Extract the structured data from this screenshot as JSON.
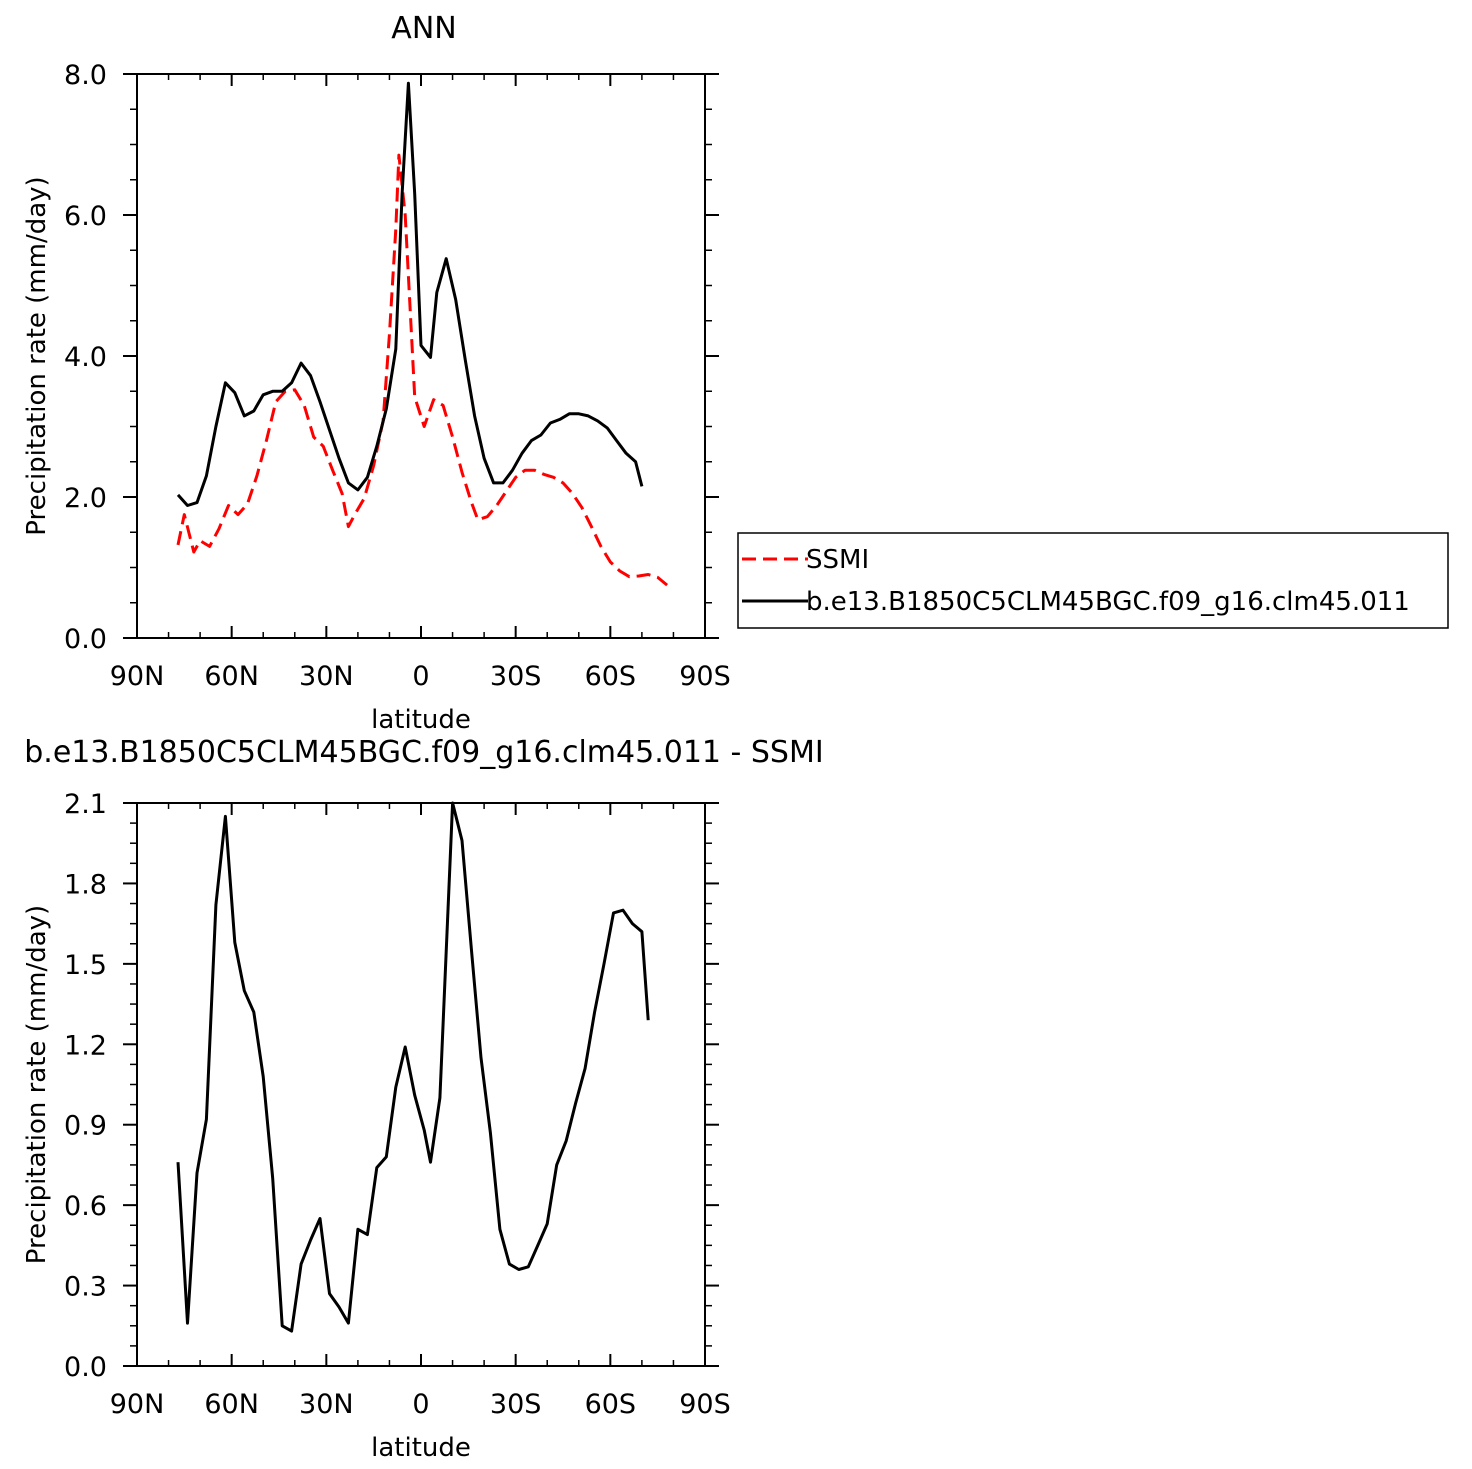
{
  "chart_data": [
    {
      "type": "line",
      "title": "ANN",
      "xlabel": "latitude",
      "ylabel": "Precipitation rate (mm/day)",
      "xlim": [
        -90,
        90
      ],
      "ylim": [
        0,
        8
      ],
      "x_ticks": [
        -90,
        -60,
        -30,
        0,
        30,
        60,
        90
      ],
      "x_tick_labels": [
        "90N",
        "60N",
        "30N",
        "0",
        "30S",
        "60S",
        "90S"
      ],
      "y_ticks": [
        0,
        2,
        4,
        6,
        8
      ],
      "y_tick_labels": [
        "0.0",
        "2.0",
        "4.0",
        "6.0",
        "8.0"
      ],
      "legend": {
        "placement": "right"
      },
      "series": [
        {
          "name": "SSMI",
          "color": "#ff0000",
          "dash": "dashed",
          "points": [
            [
              -77,
              1.32
            ],
            [
              -75,
              1.75
            ],
            [
              -72,
              1.22
            ],
            [
              -70,
              1.38
            ],
            [
              -67,
              1.3
            ],
            [
              -64,
              1.55
            ],
            [
              -61,
              1.88
            ],
            [
              -58,
              1.75
            ],
            [
              -55,
              1.9
            ],
            [
              -52,
              2.3
            ],
            [
              -49,
              2.8
            ],
            [
              -46,
              3.35
            ],
            [
              -43,
              3.5
            ],
            [
              -40,
              3.52
            ],
            [
              -37,
              3.3
            ],
            [
              -34,
              2.85
            ],
            [
              -31,
              2.72
            ],
            [
              -28,
              2.38
            ],
            [
              -25,
              2.05
            ],
            [
              -23,
              1.58
            ],
            [
              -21,
              1.75
            ],
            [
              -18,
              1.98
            ],
            [
              -15,
              2.45
            ],
            [
              -12,
              3.08
            ],
            [
              -10,
              4.3
            ],
            [
              -8,
              5.8
            ],
            [
              -7,
              6.85
            ],
            [
              -5,
              6.0
            ],
            [
              -3,
              4.3
            ],
            [
              -2,
              3.42
            ],
            [
              1,
              3.0
            ],
            [
              4,
              3.38
            ],
            [
              7,
              3.3
            ],
            [
              10,
              2.85
            ],
            [
              13,
              2.35
            ],
            [
              16,
              1.92
            ],
            [
              18,
              1.68
            ],
            [
              21,
              1.72
            ],
            [
              24,
              1.88
            ],
            [
              27,
              2.08
            ],
            [
              30,
              2.28
            ],
            [
              33,
              2.38
            ],
            [
              36,
              2.38
            ],
            [
              39,
              2.32
            ],
            [
              42,
              2.28
            ],
            [
              45,
              2.2
            ],
            [
              48,
              2.05
            ],
            [
              51,
              1.85
            ],
            [
              54,
              1.58
            ],
            [
              57,
              1.3
            ],
            [
              60,
              1.08
            ],
            [
              63,
              0.95
            ],
            [
              66,
              0.87
            ],
            [
              69,
              0.88
            ],
            [
              72,
              0.9
            ],
            [
              75,
              0.86
            ],
            [
              78,
              0.75
            ]
          ]
        },
        {
          "name": "b.e13.B1850C5CLM45BGC.f09_g16.clm45.011",
          "color": "#000000",
          "dash": "solid",
          "points": [
            [
              -77,
              2.03
            ],
            [
              -74,
              1.88
            ],
            [
              -71,
              1.92
            ],
            [
              -68,
              2.3
            ],
            [
              -65,
              3.0
            ],
            [
              -62,
              3.62
            ],
            [
              -59,
              3.48
            ],
            [
              -56,
              3.15
            ],
            [
              -53,
              3.22
            ],
            [
              -50,
              3.45
            ],
            [
              -47,
              3.5
            ],
            [
              -44,
              3.5
            ],
            [
              -41,
              3.62
            ],
            [
              -38,
              3.9
            ],
            [
              -35,
              3.72
            ],
            [
              -32,
              3.35
            ],
            [
              -29,
              2.95
            ],
            [
              -26,
              2.55
            ],
            [
              -23,
              2.2
            ],
            [
              -20,
              2.1
            ],
            [
              -17,
              2.28
            ],
            [
              -14,
              2.72
            ],
            [
              -11,
              3.25
            ],
            [
              -8,
              4.1
            ],
            [
              -6,
              6.3
            ],
            [
              -4,
              7.87
            ],
            [
              -2,
              6.3
            ],
            [
              0,
              4.15
            ],
            [
              3,
              3.98
            ],
            [
              5,
              4.9
            ],
            [
              8,
              5.38
            ],
            [
              11,
              4.8
            ],
            [
              14,
              3.95
            ],
            [
              17,
              3.15
            ],
            [
              20,
              2.55
            ],
            [
              23,
              2.2
            ],
            [
              26,
              2.2
            ],
            [
              29,
              2.38
            ],
            [
              32,
              2.62
            ],
            [
              35,
              2.8
            ],
            [
              38,
              2.88
            ],
            [
              41,
              3.05
            ],
            [
              44,
              3.1
            ],
            [
              47,
              3.18
            ],
            [
              50,
              3.18
            ],
            [
              53,
              3.15
            ],
            [
              56,
              3.08
            ],
            [
              59,
              2.98
            ],
            [
              62,
              2.8
            ],
            [
              65,
              2.62
            ],
            [
              68,
              2.5
            ],
            [
              70,
              2.15
            ]
          ]
        }
      ]
    },
    {
      "type": "line",
      "title": "b.e13.B1850C5CLM45BGC.f09_g16.clm45.011 - SSMI",
      "xlabel": "latitude",
      "ylabel": "Precipitation rate (mm/day)",
      "xlim": [
        -90,
        90
      ],
      "ylim": [
        0,
        2.1
      ],
      "x_ticks": [
        -90,
        -60,
        -30,
        0,
        30,
        60,
        90
      ],
      "x_tick_labels": [
        "90N",
        "60N",
        "30N",
        "0",
        "30S",
        "60S",
        "90S"
      ],
      "y_ticks": [
        0,
        0.3,
        0.6,
        0.9,
        1.2,
        1.5,
        1.8,
        2.1
      ],
      "y_tick_labels": [
        "0.0",
        "0.3",
        "0.6",
        "0.9",
        "1.2",
        "1.5",
        "1.8",
        "2.1"
      ],
      "series": [
        {
          "color": "#000000",
          "dash": "solid",
          "points": [
            [
              -77,
              0.76
            ],
            [
              -74,
              0.16
            ],
            [
              -71,
              0.72
            ],
            [
              -68,
              0.92
            ],
            [
              -65,
              1.72
            ],
            [
              -62,
              2.05
            ],
            [
              -59,
              1.58
            ],
            [
              -56,
              1.4
            ],
            [
              -53,
              1.32
            ],
            [
              -50,
              1.08
            ],
            [
              -47,
              0.7
            ],
            [
              -44,
              0.15
            ],
            [
              -41,
              0.13
            ],
            [
              -38,
              0.38
            ],
            [
              -35,
              0.47
            ],
            [
              -32,
              0.55
            ],
            [
              -29,
              0.27
            ],
            [
              -26,
              0.22
            ],
            [
              -23,
              0.16
            ],
            [
              -20,
              0.51
            ],
            [
              -17,
              0.49
            ],
            [
              -14,
              0.74
            ],
            [
              -11,
              0.78
            ],
            [
              -8,
              1.04
            ],
            [
              -5,
              1.19
            ],
            [
              -2,
              1.01
            ],
            [
              1,
              0.88
            ],
            [
              3,
              0.76
            ],
            [
              6,
              1.0
            ],
            [
              10,
              2.1
            ],
            [
              13,
              1.96
            ],
            [
              16,
              1.55
            ],
            [
              19,
              1.15
            ],
            [
              22,
              0.87
            ],
            [
              25,
              0.51
            ],
            [
              28,
              0.38
            ],
            [
              31,
              0.36
            ],
            [
              34,
              0.37
            ],
            [
              37,
              0.45
            ],
            [
              40,
              0.53
            ],
            [
              43,
              0.75
            ],
            [
              46,
              0.84
            ],
            [
              49,
              0.98
            ],
            [
              52,
              1.11
            ],
            [
              55,
              1.32
            ],
            [
              58,
              1.5
            ],
            [
              61,
              1.69
            ],
            [
              64,
              1.7
            ],
            [
              67,
              1.65
            ],
            [
              70,
              1.62
            ],
            [
              72,
              1.29
            ]
          ]
        }
      ]
    }
  ]
}
